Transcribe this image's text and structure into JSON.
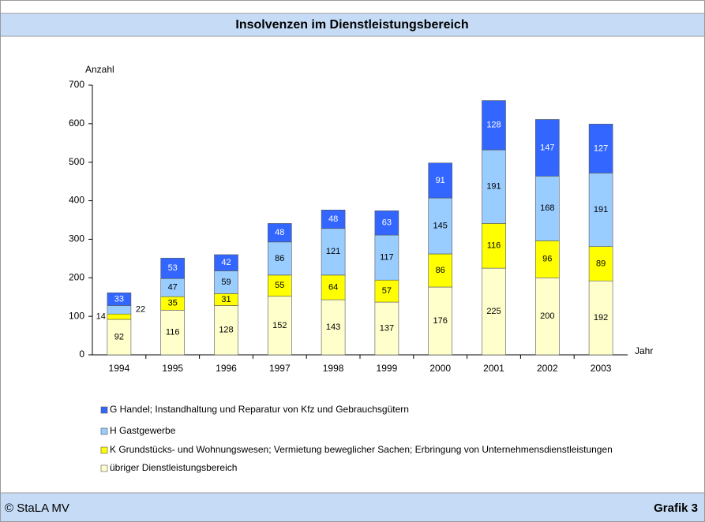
{
  "chart_data": {
    "type": "stacked-bar",
    "title": "Insolvenzen im Dienstleistungsbereich",
    "y_label": "Anzahl",
    "x_label": "Jahr",
    "categories": [
      "1994",
      "1995",
      "1996",
      "1997",
      "1998",
      "1999",
      "2000",
      "2001",
      "2002",
      "2003"
    ],
    "series": [
      {
        "name": "übriger Dienstleistungsbereich",
        "color": "#ffffcc",
        "label_color": "#000000",
        "values": [
          92,
          116,
          128,
          152,
          143,
          137,
          176,
          225,
          200,
          192
        ]
      },
      {
        "name": "K Grundstücks- und Wohnungswesen; Vermietung beweglicher Sachen; Erbringung von Unternehmensdienstleistungen",
        "color": "#ffff00",
        "label_color": "#000000",
        "values": [
          14,
          35,
          31,
          55,
          64,
          57,
          86,
          116,
          96,
          89
        ]
      },
      {
        "name": "H Gastgewerbe",
        "color": "#99ccff",
        "label_color": "#000000",
        "values": [
          22,
          47,
          59,
          86,
          121,
          117,
          145,
          191,
          168,
          191
        ]
      },
      {
        "name": "G Handel; Instandhaltung und Reparatur von Kfz und Gebrauchsgütern",
        "color": "#3366ff",
        "label_color": "#ffffff",
        "values": [
          33,
          53,
          42,
          48,
          48,
          63,
          91,
          128,
          147,
          127
        ]
      }
    ],
    "ylim": [
      0,
      700
    ],
    "yticks": [
      0,
      100,
      200,
      300,
      400,
      500,
      600,
      700
    ]
  },
  "footer": {
    "source": "© StaLA MV",
    "label": "Grafik 3"
  }
}
